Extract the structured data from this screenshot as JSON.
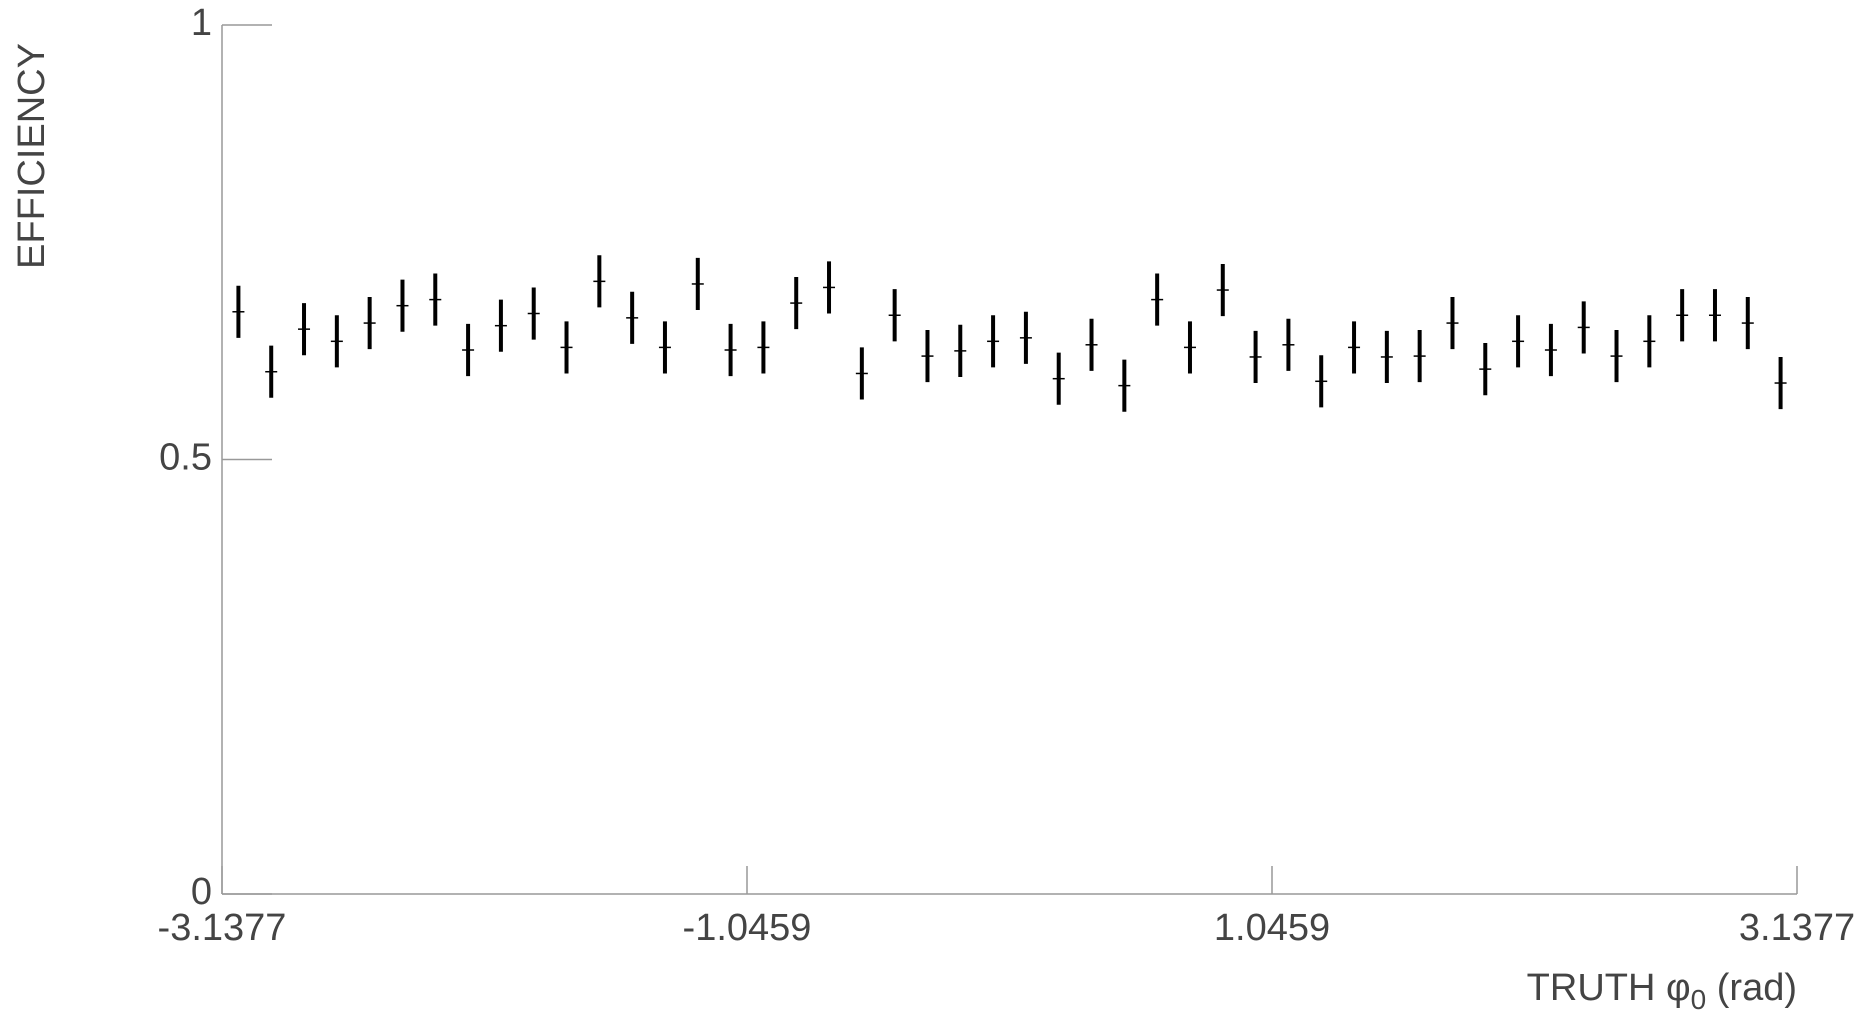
{
  "chart_data": {
    "type": "errorbar",
    "ylabel": "EFFICIENCY",
    "xlabel": "TRUTH φ",
    "xlabel_subscript": "0",
    "xlabel_suffix": " (rad)",
    "xlim": [
      -3.1377,
      3.1377
    ],
    "xticks": [
      -3.1377,
      -1.0459,
      1.0459,
      3.1377
    ],
    "ylim": [
      0,
      1
    ],
    "yticks": [
      0,
      0.5,
      1
    ],
    "grid": false,
    "color": "#000000",
    "x": [
      -3.0723,
      -2.9416,
      -2.8109,
      -2.6801,
      -2.5494,
      -2.4186,
      -2.2879,
      -2.1572,
      -2.0264,
      -1.8957,
      -1.765,
      -1.6342,
      -1.5035,
      -1.3728,
      -1.242,
      -1.1113,
      -0.9805,
      -0.8498,
      -0.7191,
      -0.5883,
      -0.4576,
      -0.3268,
      -0.1961,
      -0.0654,
      0.0654,
      0.1961,
      0.3268,
      0.4576,
      0.5883,
      0.7191,
      0.8498,
      0.9805,
      1.1113,
      1.242,
      1.3728,
      1.5035,
      1.6342,
      1.765,
      1.8957,
      2.0264,
      2.1572,
      2.2879,
      2.4186,
      2.5494,
      2.6801,
      2.8109,
      2.9416,
      3.0723
    ],
    "values": [
      0.67,
      0.601,
      0.65,
      0.636,
      0.657,
      0.677,
      0.684,
      0.626,
      0.654,
      0.668,
      0.629,
      0.705,
      0.663,
      0.629,
      0.702,
      0.626,
      0.629,
      0.68,
      0.698,
      0.599,
      0.666,
      0.619,
      0.625,
      0.636,
      0.64,
      0.593,
      0.632,
      0.585,
      0.684,
      0.629,
      0.695,
      0.618,
      0.632,
      0.59,
      0.629,
      0.618,
      0.619,
      0.657,
      0.604,
      0.636,
      0.626,
      0.652,
      0.619,
      0.636,
      0.666,
      0.666,
      0.657,
      0.588
    ],
    "errors": [
      0.03,
      0.03,
      0.03,
      0.03,
      0.03,
      0.03,
      0.03,
      0.03,
      0.03,
      0.03,
      0.03,
      0.03,
      0.03,
      0.03,
      0.03,
      0.03,
      0.03,
      0.03,
      0.03,
      0.03,
      0.03,
      0.03,
      0.03,
      0.03,
      0.03,
      0.03,
      0.03,
      0.03,
      0.03,
      0.03,
      0.03,
      0.03,
      0.03,
      0.03,
      0.03,
      0.03,
      0.03,
      0.03,
      0.03,
      0.03,
      0.03,
      0.03,
      0.03,
      0.03,
      0.03,
      0.03,
      0.03,
      0.03
    ]
  }
}
